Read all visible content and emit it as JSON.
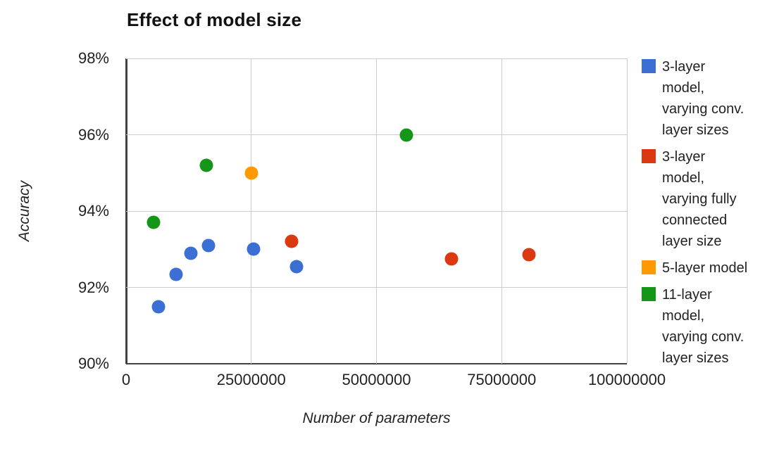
{
  "title": "Effect of model size",
  "axes": {
    "x": {
      "label": "Number of parameters",
      "ticks": [
        {
          "v": 0,
          "label": "0"
        },
        {
          "v": 25000000,
          "label": "25000000"
        },
        {
          "v": 50000000,
          "label": "50000000"
        },
        {
          "v": 75000000,
          "label": "75000000"
        },
        {
          "v": 100000000,
          "label": "100000000"
        }
      ]
    },
    "y": {
      "label": "Accuracy",
      "ticks": [
        {
          "v": 90,
          "label": "90%"
        },
        {
          "v": 92,
          "label": "92%"
        },
        {
          "v": 94,
          "label": "94%"
        },
        {
          "v": 96,
          "label": "96%"
        },
        {
          "v": 98,
          "label": "98%"
        }
      ]
    }
  },
  "colors": {
    "grid": "#cccccc",
    "axis": "#424242",
    "text": "#222222",
    "background": "#ffffff"
  },
  "chart_data": {
    "type": "scatter",
    "title": "Effect of model size",
    "xlabel": "Number of parameters",
    "ylabel": "Accuracy",
    "xlim": [
      0,
      100000000
    ],
    "ylim": [
      90,
      98
    ],
    "grid": true,
    "legend_position": "right",
    "series": [
      {
        "name": "3-layer model, varying conv. layer sizes",
        "color": "#3C6FD4",
        "legend_lines": [
          "3-layer",
          "model,",
          "varying conv.",
          "layer sizes"
        ],
        "points": [
          [
            6500000,
            91.5
          ],
          [
            10000000,
            92.35
          ],
          [
            13000000,
            92.9
          ],
          [
            16500000,
            93.1
          ],
          [
            25500000,
            93.0
          ],
          [
            34000000,
            92.55
          ]
        ]
      },
      {
        "name": "3-layer model, varying fully connected layer size",
        "color": "#DC3912",
        "legend_lines": [
          "3-layer",
          "model,",
          "varying fully",
          "connected",
          "layer size"
        ],
        "points": [
          [
            33000000,
            93.2
          ],
          [
            65000000,
            92.75
          ],
          [
            80500000,
            92.85
          ]
        ]
      },
      {
        "name": "5-layer model",
        "color": "#FF9900",
        "legend_lines": [
          "5-layer model"
        ],
        "points": [
          [
            25000000,
            95.0
          ]
        ]
      },
      {
        "name": "11-layer model, varying conv. layer sizes",
        "color": "#149718",
        "legend_lines": [
          "11-layer",
          "model,",
          "varying conv.",
          "layer sizes"
        ],
        "points": [
          [
            5500000,
            93.7
          ],
          [
            16000000,
            95.2
          ],
          [
            56000000,
            96.0
          ]
        ]
      }
    ]
  }
}
